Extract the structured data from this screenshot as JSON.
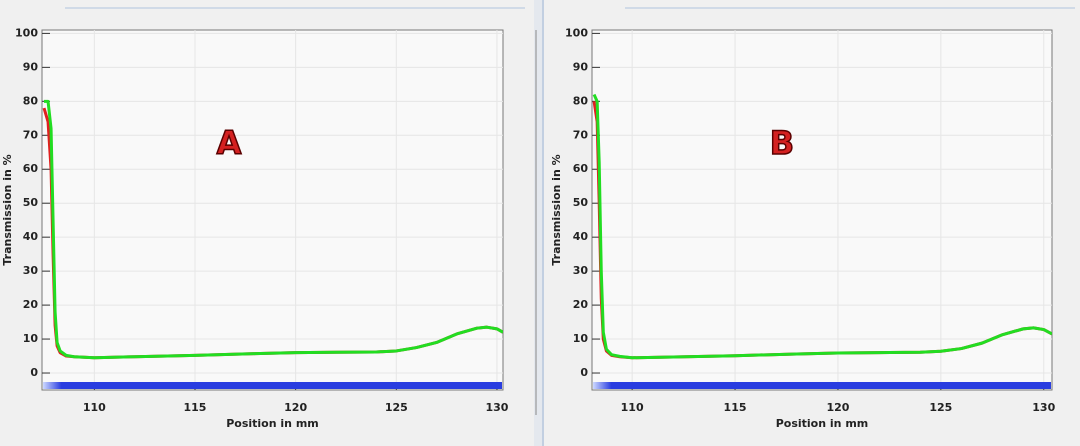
{
  "chart_data": [
    {
      "type": "line",
      "annotation": "A",
      "x_label": "Position in mm",
      "y_label": "Transmission in %",
      "x": [
        107.5,
        107.7,
        107.85,
        107.95,
        108.05,
        108.15,
        108.3,
        108.6,
        109,
        110,
        112,
        115,
        118,
        120,
        122,
        124,
        125,
        126,
        127,
        128,
        129,
        129.5,
        130,
        130.3
      ],
      "series": [
        {
          "color": "#e02020",
          "values": [
            78,
            74,
            60,
            35,
            14,
            8,
            6,
            5,
            4.8,
            4.5,
            4.8,
            5.2,
            5.7,
            6,
            6.1,
            6.2,
            6.5,
            7.5,
            9,
            11.5,
            13.2,
            13.5,
            13,
            12
          ]
        },
        {
          "color": "#22dd22",
          "values": [
            80,
            80,
            72,
            45,
            18,
            9,
            6.5,
            5.2,
            4.8,
            4.5,
            4.8,
            5.2,
            5.7,
            6,
            6.1,
            6.2,
            6.5,
            7.5,
            9,
            11.5,
            13.2,
            13.5,
            13,
            12
          ]
        }
      ],
      "xlim": [
        107.4,
        130.3
      ],
      "ylim": [
        -5,
        101
      ],
      "xticks": [
        110,
        115,
        120,
        125,
        130
      ],
      "yticks": [
        0,
        10,
        20,
        30,
        40,
        50,
        60,
        70,
        80,
        90,
        100
      ]
    },
    {
      "type": "line",
      "annotation": "B",
      "x_label": "Position in mm",
      "y_label": "Transmission in %",
      "x": [
        108.15,
        108.3,
        108.4,
        108.5,
        108.6,
        108.75,
        109,
        109.4,
        110,
        112,
        115,
        118,
        120,
        122,
        124,
        125,
        126,
        127,
        128,
        129,
        129.5,
        130,
        130.4
      ],
      "series": [
        {
          "color": "#e02020",
          "values": [
            80,
            74,
            50,
            22,
            10,
            6.5,
            5.2,
            4.8,
            4.5,
            4.7,
            5.1,
            5.6,
            5.9,
            6,
            6.1,
            6.4,
            7.2,
            8.8,
            11.3,
            13,
            13.3,
            12.8,
            11.5
          ]
        },
        {
          "color": "#22dd22",
          "values": [
            82,
            80,
            62,
            30,
            12,
            7,
            5.4,
            4.9,
            4.5,
            4.7,
            5.1,
            5.6,
            5.9,
            6,
            6.1,
            6.4,
            7.2,
            8.8,
            11.3,
            13,
            13.3,
            12.8,
            11.5
          ]
        }
      ],
      "xlim": [
        108.05,
        130.4
      ],
      "ylim": [
        -5,
        101
      ],
      "xticks": [
        110,
        115,
        120,
        125,
        130
      ],
      "yticks": [
        0,
        10,
        20,
        30,
        40,
        50,
        60,
        70,
        80,
        90,
        100
      ]
    }
  ]
}
